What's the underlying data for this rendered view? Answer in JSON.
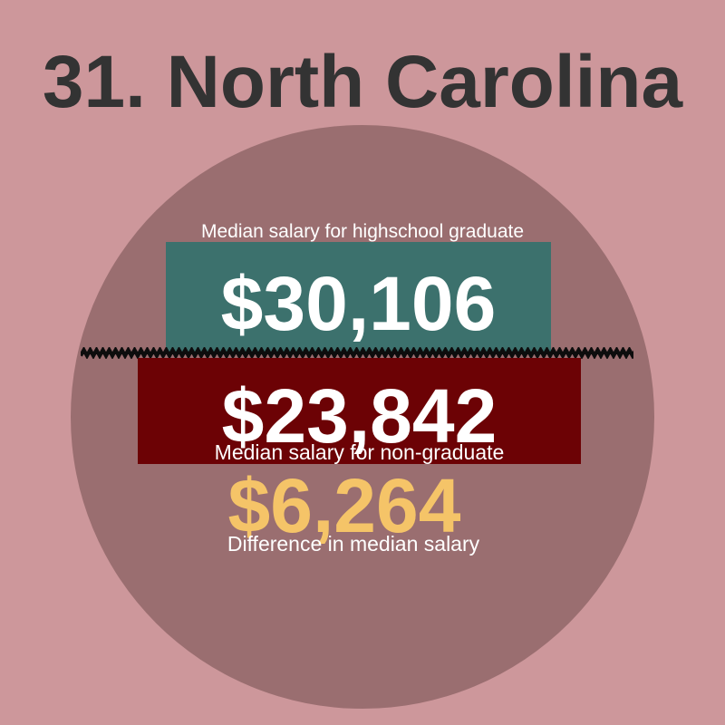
{
  "title": "31. North Carolina",
  "colors": {
    "bg": "#cd979b",
    "circle": "#9a6e70",
    "teal": "#3c716d",
    "red": "#6c0205",
    "yellow": "#f5c468",
    "title": "#333333",
    "label": "#ffffff",
    "zigzag": "#0d0d0d"
  },
  "chart_data": {
    "type": "bar",
    "title": "31. North Carolina",
    "categories": [
      "Median salary for highschool graduate",
      "Median salary for non-graduate"
    ],
    "values": [
      30106,
      23842
    ],
    "value_labels": [
      "$30,106",
      "$23,842"
    ],
    "series_colors": [
      "#3c716d",
      "#6c0205"
    ],
    "difference": {
      "label": "Difference in median salary",
      "value": 6264,
      "value_label": "$6,264"
    },
    "legend": "none",
    "orientation": "horizontal-stacked-infographic"
  }
}
